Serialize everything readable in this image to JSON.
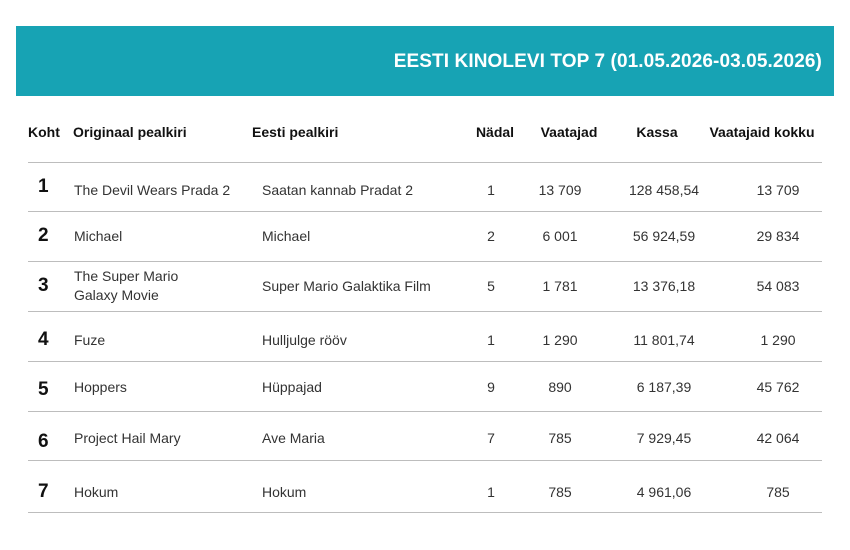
{
  "title": "EESTI KINOLEVI TOP 7 (01.05.2026-03.05.2026)",
  "colors": {
    "banner": "#17a3b4",
    "banner_text": "#ffffff",
    "divider": "#bdbdbd"
  },
  "columns": {
    "rank": "Koht",
    "original": "Originaal pealkiri",
    "estonian": "Eesti pealkiri",
    "week": "Nädal",
    "viewers": "Vaatajad",
    "box_office": "Kassa",
    "total_viewers": "Vaatajaid kokku"
  },
  "rows": [
    {
      "rank": "1",
      "original": "The Devil Wears Prada 2",
      "estonian": "Saatan kannab Pradat 2",
      "week": "1",
      "viewers": "13 709",
      "box_office": "128 458,54",
      "total_viewers": "13 709"
    },
    {
      "rank": "2",
      "original": "Michael",
      "estonian": "Michael",
      "week": "2",
      "viewers": "6 001",
      "box_office": "56 924,59",
      "total_viewers": "29 834"
    },
    {
      "rank": "3",
      "original": "The Super Mario Galaxy Movie",
      "estonian": "Super Mario Galaktika Film",
      "week": "5",
      "viewers": "1 781",
      "box_office": "13 376,18",
      "total_viewers": "54 083"
    },
    {
      "rank": "4",
      "original": "Fuze",
      "estonian": "Hulljulge rööv",
      "week": "1",
      "viewers": "1 290",
      "box_office": "11 801,74",
      "total_viewers": "1 290"
    },
    {
      "rank": "5",
      "original": "Hoppers",
      "estonian": "Hüppajad",
      "week": "9",
      "viewers": "890",
      "box_office": "6 187,39",
      "total_viewers": "45 762"
    },
    {
      "rank": "6",
      "original": "Project Hail Mary",
      "estonian": "Ave Maria",
      "week": "7",
      "viewers": "785",
      "box_office": "7 929,45",
      "total_viewers": "42 064"
    },
    {
      "rank": "7",
      "original": "Hokum",
      "estonian": "Hokum",
      "week": "1",
      "viewers": "785",
      "box_office": "4 961,06",
      "total_viewers": "785"
    }
  ]
}
